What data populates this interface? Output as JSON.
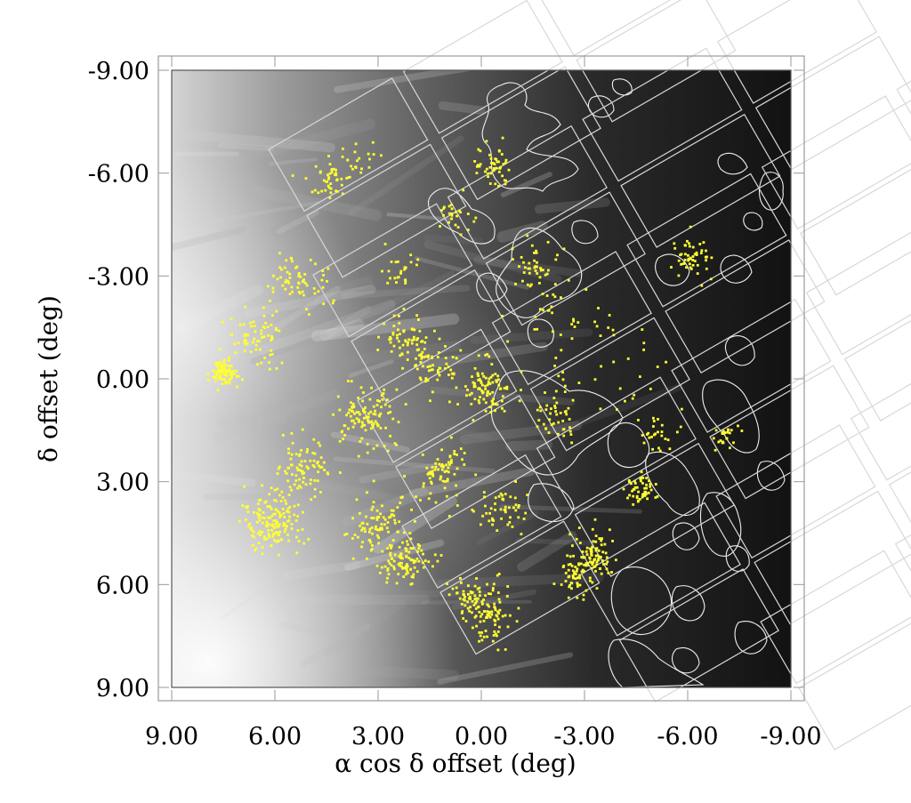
{
  "chart_data": {
    "type": "scatter",
    "xlabel": "α cos δ offset (deg)",
    "ylabel": "δ offset (deg)",
    "xlim": [
      9.0,
      -9.0
    ],
    "ylim": [
      -9.0,
      9.0
    ],
    "x_ticks": [
      "9.00",
      "6.00",
      "3.00",
      "0.00",
      "-3.00",
      "-6.00",
      "-9.00"
    ],
    "y_ticks": [
      "-9.00",
      "-6.00",
      "-3.00",
      "0.00",
      "3.00",
      "6.00",
      "9.00"
    ],
    "x_tick_values": [
      9,
      6,
      3,
      0,
      -3,
      -6,
      -9
    ],
    "y_tick_values": [
      -9,
      -6,
      -3,
      0,
      3,
      6,
      9
    ],
    "background": "grayscale extinction map, bright (white) on the left, dark on the right",
    "overlay_colors": {
      "points": "#ffff33",
      "footprints": "#d8d8d8",
      "contours": "#f0f0f0"
    },
    "point_clusters": [
      {
        "x": 7.5,
        "y": -0.2,
        "spread": 0.35,
        "n": 90
      },
      {
        "x": 6.5,
        "y": -1.2,
        "spread": 0.8,
        "n": 70
      },
      {
        "x": 5.3,
        "y": -2.9,
        "spread": 0.7,
        "n": 60
      },
      {
        "x": 4.4,
        "y": -5.8,
        "spread": 0.6,
        "n": 45
      },
      {
        "x": 3.4,
        "y": -6.4,
        "spread": 0.6,
        "n": 20
      },
      {
        "x": 2.3,
        "y": -3.2,
        "spread": 0.5,
        "n": 25
      },
      {
        "x": 2.2,
        "y": -1.1,
        "spread": 0.6,
        "n": 60
      },
      {
        "x": 1.4,
        "y": -0.4,
        "spread": 0.6,
        "n": 55
      },
      {
        "x": 3.3,
        "y": 1.1,
        "spread": 0.9,
        "n": 110
      },
      {
        "x": 5.2,
        "y": 2.6,
        "spread": 0.7,
        "n": 80
      },
      {
        "x": 6.0,
        "y": 4.1,
        "spread": 0.8,
        "n": 160
      },
      {
        "x": 3.0,
        "y": 4.3,
        "spread": 0.8,
        "n": 90
      },
      {
        "x": 2.2,
        "y": 5.4,
        "spread": 0.6,
        "n": 90
      },
      {
        "x": 0.2,
        "y": 6.4,
        "spread": 0.6,
        "n": 70
      },
      {
        "x": -0.3,
        "y": 7.0,
        "spread": 0.6,
        "n": 60
      },
      {
        "x": -0.2,
        "y": 0.3,
        "spread": 0.7,
        "n": 90
      },
      {
        "x": 1.1,
        "y": 2.7,
        "spread": 0.8,
        "n": 70
      },
      {
        "x": -0.6,
        "y": 3.8,
        "spread": 0.6,
        "n": 50
      },
      {
        "x": -0.3,
        "y": -6.2,
        "spread": 0.5,
        "n": 45
      },
      {
        "x": 0.8,
        "y": -4.8,
        "spread": 0.5,
        "n": 25
      },
      {
        "x": -1.6,
        "y": -3.4,
        "spread": 0.6,
        "n": 40
      },
      {
        "x": -2.3,
        "y": 1.0,
        "spread": 0.6,
        "n": 40
      },
      {
        "x": -3.2,
        "y": 5.2,
        "spread": 0.6,
        "n": 90
      },
      {
        "x": -2.7,
        "y": 5.9,
        "spread": 0.5,
        "n": 40
      },
      {
        "x": -4.6,
        "y": 3.2,
        "spread": 0.5,
        "n": 50
      },
      {
        "x": -5.1,
        "y": 1.7,
        "spread": 0.5,
        "n": 25
      },
      {
        "x": -6.1,
        "y": -3.5,
        "spread": 0.5,
        "n": 50
      },
      {
        "x": -7.1,
        "y": 1.7,
        "spread": 0.4,
        "n": 25
      },
      {
        "x": -2.0,
        "y": -1.5,
        "spread": 1.8,
        "n": 40
      },
      {
        "x": -4.0,
        "y": -0.5,
        "spread": 1.6,
        "n": 25
      }
    ]
  }
}
